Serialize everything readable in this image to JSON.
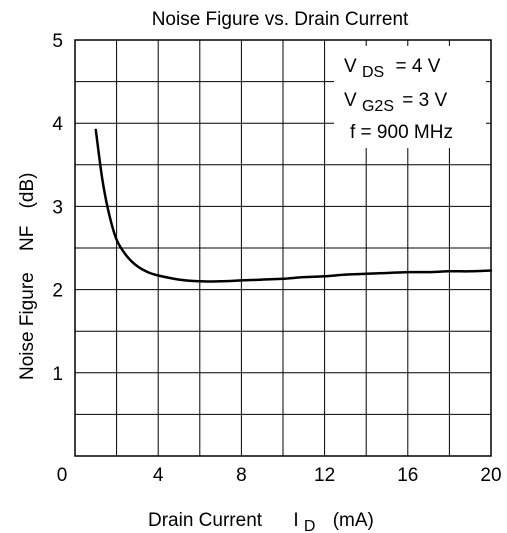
{
  "chart_data": {
    "type": "line",
    "title": "Noise Figure vs. Drain Current",
    "xlabel": {
      "main": "Drain Current",
      "symbol": "I",
      "subscript": "D",
      "unit": "(mA)"
    },
    "ylabel": {
      "main": "Noise Figure",
      "symbol": "NF",
      "unit": "(dB)"
    },
    "xlim": [
      0,
      20
    ],
    "ylim": [
      0,
      5
    ],
    "x_ticks": [
      "0",
      "4",
      "8",
      "12",
      "16",
      "20"
    ],
    "y_ticks": [
      "1",
      "2",
      "3",
      "4",
      "5"
    ],
    "grid": true,
    "series": [
      {
        "x": [
          1.0,
          1.3,
          1.6,
          2.0,
          2.5,
          3.0,
          3.5,
          4.0,
          5.0,
          6.0,
          7.0,
          8.0,
          9.0,
          10.0,
          11.0,
          12.0,
          13.0,
          14.0,
          15.0,
          16.0,
          17.0,
          18.0,
          19.0,
          20.0
        ],
        "y": [
          3.92,
          3.35,
          2.95,
          2.6,
          2.4,
          2.28,
          2.21,
          2.17,
          2.12,
          2.1,
          2.1,
          2.11,
          2.12,
          2.13,
          2.15,
          2.16,
          2.18,
          2.19,
          2.2,
          2.21,
          2.21,
          2.22,
          2.22,
          2.23
        ]
      }
    ],
    "conditions": {
      "vds": {
        "symbol": "V",
        "subscript": "DS",
        "value": "= 4 V"
      },
      "vg2s": {
        "symbol": "V",
        "subscript": "G2S",
        "value": "= 3 V"
      },
      "freq": "f = 900 MHz"
    }
  }
}
